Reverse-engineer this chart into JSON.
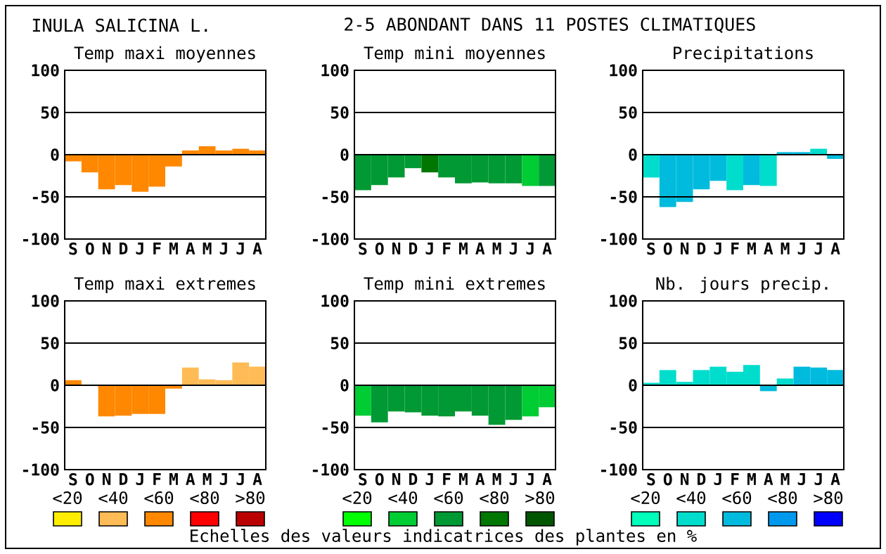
{
  "chart_data": [
    {
      "type": "other",
      "title": "INULA SALICINA L.",
      "subtitle": "2-5 ABONDANT DANS 11 POSTES CLIMATIQUES"
    },
    {
      "type": "bar",
      "title": "Temp maxi moyennes",
      "categories": [
        "S",
        "O",
        "N",
        "D",
        "J",
        "F",
        "M",
        "A",
        "M",
        "J",
        "J",
        "A"
      ],
      "values": [
        -8,
        -21,
        -41,
        -36,
        -44,
        -38,
        -14,
        5,
        10,
        5,
        7,
        5
      ],
      "colors": [
        "#ff8800",
        "#ff8800",
        "#ff8800",
        "#ff8800",
        "#ff8800",
        "#ff8800",
        "#ff8800",
        "#ff8800",
        "#ff8800",
        "#ff8800",
        "#ff8800",
        "#ff8800"
      ],
      "ylim": [
        -100,
        100
      ],
      "yticks": [
        -100,
        -50,
        0,
        50,
        100
      ],
      "grid": "y"
    },
    {
      "type": "bar",
      "title": "Temp mini moyennes",
      "categories": [
        "S",
        "O",
        "N",
        "D",
        "J",
        "F",
        "M",
        "A",
        "M",
        "J",
        "J",
        "A"
      ],
      "values": [
        -42,
        -36,
        -27,
        -16,
        -21,
        -27,
        -34,
        -33,
        -34,
        -34,
        -37,
        -37
      ],
      "colors": [
        "#009933",
        "#009933",
        "#009933",
        "#009933",
        "#007700",
        "#009933",
        "#009933",
        "#009933",
        "#009933",
        "#009933",
        "#00cc33",
        "#009933"
      ],
      "ylim": [
        -100,
        100
      ],
      "yticks": [
        -100,
        -50,
        0,
        50,
        100
      ],
      "grid": "y"
    },
    {
      "type": "bar",
      "title": "Precipitations",
      "categories": [
        "S",
        "O",
        "N",
        "D",
        "J",
        "F",
        "M",
        "A",
        "M",
        "J",
        "J",
        "A"
      ],
      "values": [
        -27,
        -62,
        -56,
        -41,
        -31,
        -42,
        -36,
        -37,
        3,
        3,
        7,
        -5
      ],
      "colors": [
        "#00ddcc",
        "#00bbdd",
        "#00bbdd",
        "#00bbdd",
        "#00bbdd",
        "#00ddcc",
        "#00bbdd",
        "#00ddcc",
        "#00bbdd",
        "#00bbdd",
        "#00ddcc",
        "#00bbdd"
      ],
      "ylim": [
        -100,
        100
      ],
      "yticks": [
        -100,
        -50,
        0,
        50,
        100
      ],
      "grid": "y"
    },
    {
      "type": "bar",
      "title": "Temp maxi extremes",
      "categories": [
        "S",
        "O",
        "N",
        "D",
        "J",
        "F",
        "M",
        "A",
        "M",
        "J",
        "J",
        "A"
      ],
      "values": [
        6,
        0,
        -37,
        -36,
        -34,
        -34,
        -4,
        21,
        7,
        6,
        27,
        22
      ],
      "colors": [
        "#ff8800",
        "#ff8800",
        "#ff8800",
        "#ff8800",
        "#ff8800",
        "#ff8800",
        "#ff8800",
        "#ffbb55",
        "#ffbb55",
        "#ffbb55",
        "#ffbb55",
        "#ffbb55"
      ],
      "ylim": [
        -100,
        100
      ],
      "yticks": [
        -100,
        -50,
        0,
        50,
        100
      ],
      "grid": "y"
    },
    {
      "type": "bar",
      "title": "Temp mini extremes",
      "categories": [
        "S",
        "O",
        "N",
        "D",
        "J",
        "F",
        "M",
        "A",
        "M",
        "J",
        "J",
        "A"
      ],
      "values": [
        -36,
        -44,
        -31,
        -32,
        -36,
        -37,
        -31,
        -36,
        -47,
        -41,
        -37,
        -26
      ],
      "colors": [
        "#00cc33",
        "#009933",
        "#009933",
        "#009933",
        "#009933",
        "#009933",
        "#009933",
        "#009933",
        "#009933",
        "#009933",
        "#00cc33",
        "#00cc33"
      ],
      "ylim": [
        -100,
        100
      ],
      "yticks": [
        -100,
        -50,
        0,
        50,
        100
      ],
      "grid": "y"
    },
    {
      "type": "bar",
      "title": "Nb. jours precip.",
      "categories": [
        "S",
        "O",
        "N",
        "D",
        "J",
        "F",
        "M",
        "A",
        "M",
        "J",
        "J",
        "A"
      ],
      "values": [
        3,
        18,
        4,
        18,
        22,
        16,
        24,
        -7,
        8,
        22,
        21,
        18
      ],
      "colors": [
        "#00ddcc",
        "#00ddcc",
        "#00ddcc",
        "#00ddcc",
        "#00ddcc",
        "#00ddcc",
        "#00ddcc",
        "#00bbdd",
        "#00ddcc",
        "#00bbdd",
        "#00bbdd",
        "#00bbdd"
      ],
      "ylim": [
        -100,
        100
      ],
      "yticks": [
        -100,
        -50,
        0,
        50,
        100
      ],
      "grid": "y"
    },
    {
      "type": "other",
      "categories": [
        "<20",
        "<40",
        "<60",
        "<80",
        ">80"
      ],
      "colors": [
        "#ffee00",
        "#ffbb55",
        "#ff8800",
        "#ff0000",
        "#bb0000"
      ]
    },
    {
      "type": "other",
      "categories": [
        "<20",
        "<40",
        "<60",
        "<80",
        ">80"
      ],
      "colors": [
        "#00ff00",
        "#00cc33",
        "#009933",
        "#007700",
        "#005500"
      ],
      "annotations": [
        "Echelles des valeurs indicatrices des plantes en %"
      ]
    },
    {
      "type": "other",
      "categories": [
        "<20",
        "<40",
        "<60",
        "<80",
        ">80"
      ],
      "colors": [
        "#00ffbb",
        "#00ddcc",
        "#00bbdd",
        "#0099ee",
        "#0000ff"
      ]
    }
  ]
}
